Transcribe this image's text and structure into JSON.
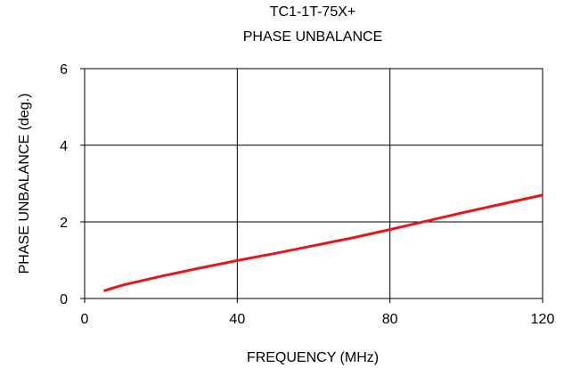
{
  "chart_data": {
    "type": "line",
    "title": "TC1-1T-75X+",
    "subtitle": "PHASE UNBALANCE",
    "xlabel": "FREQUENCY (MHz)",
    "ylabel": "PHASE UNBALANCE (deg.)",
    "xlim": [
      0,
      120
    ],
    "ylim": [
      0,
      6
    ],
    "x_ticks": [
      0,
      40,
      80,
      120
    ],
    "y_ticks": [
      0,
      2,
      4,
      6
    ],
    "x_tick_labels": [
      "0",
      "40",
      "80",
      "120"
    ],
    "y_tick_labels": [
      "0",
      "2",
      "4",
      "6"
    ],
    "grid": true,
    "series": [
      {
        "color": "#e8161b",
        "x": [
          5,
          10,
          20,
          30,
          40,
          50,
          60,
          70,
          80,
          90,
          100,
          110,
          120
        ],
        "y": [
          0.2,
          0.35,
          0.58,
          0.79,
          0.99,
          1.18,
          1.38,
          1.58,
          1.8,
          2.03,
          2.26,
          2.48,
          2.7
        ]
      }
    ]
  }
}
